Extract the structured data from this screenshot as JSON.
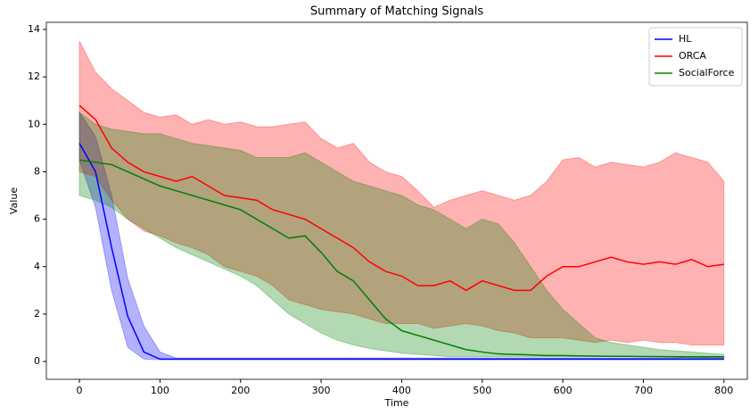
{
  "chart_data": {
    "type": "line",
    "title": "Summary of Matching Signals",
    "xlabel": "Time",
    "ylabel": "Value",
    "x": [
      0,
      20,
      40,
      60,
      80,
      100,
      120,
      140,
      160,
      180,
      200,
      220,
      240,
      260,
      280,
      300,
      320,
      340,
      360,
      380,
      400,
      420,
      440,
      460,
      480,
      500,
      520,
      540,
      560,
      580,
      600,
      620,
      640,
      660,
      680,
      700,
      720,
      740,
      760,
      780,
      800
    ],
    "series": [
      {
        "name": "HL",
        "color": "#0000ff",
        "values": [
          9.2,
          8.0,
          4.8,
          1.9,
          0.4,
          0.1,
          0.1,
          0.1,
          0.1,
          0.1,
          0.1,
          0.1,
          0.1,
          0.1,
          0.1,
          0.1,
          0.1,
          0.1,
          0.1,
          0.1,
          0.1,
          0.1,
          0.1,
          0.1,
          0.1,
          0.1,
          0.1,
          0.1,
          0.1,
          0.1,
          0.1,
          0.1,
          0.1,
          0.1,
          0.1,
          0.1,
          0.1,
          0.1,
          0.1,
          0.1,
          0.1
        ],
        "upper": [
          10.5,
          9.5,
          7.0,
          3.5,
          1.5,
          0.4,
          0.15,
          0.15,
          0.15,
          0.15,
          0.15,
          0.15,
          0.15,
          0.15,
          0.15,
          0.15,
          0.15,
          0.15,
          0.15,
          0.15,
          0.15,
          0.15,
          0.15,
          0.15,
          0.15,
          0.15,
          0.15,
          0.15,
          0.15,
          0.15,
          0.15,
          0.15,
          0.15,
          0.15,
          0.15,
          0.15,
          0.15,
          0.15,
          0.2,
          0.2,
          0.2
        ],
        "lower": [
          8.5,
          6.5,
          3.0,
          0.6,
          0.1,
          0.08,
          0.08,
          0.08,
          0.08,
          0.08,
          0.08,
          0.08,
          0.08,
          0.08,
          0.08,
          0.08,
          0.08,
          0.08,
          0.08,
          0.08,
          0.08,
          0.08,
          0.08,
          0.08,
          0.08,
          0.08,
          0.08,
          0.08,
          0.08,
          0.08,
          0.08,
          0.08,
          0.08,
          0.08,
          0.08,
          0.08,
          0.08,
          0.08,
          0.08,
          0.08,
          0.08
        ]
      },
      {
        "name": "ORCA",
        "color": "#ff0000",
        "values": [
          10.8,
          10.2,
          9.0,
          8.4,
          8.0,
          7.8,
          7.6,
          7.8,
          7.4,
          7.0,
          6.9,
          6.8,
          6.4,
          6.2,
          6.0,
          5.6,
          5.2,
          4.8,
          4.2,
          3.8,
          3.6,
          3.2,
          3.2,
          3.4,
          3.0,
          3.4,
          3.2,
          3.0,
          3.0,
          3.6,
          4.0,
          4.0,
          4.2,
          4.4,
          4.2,
          4.1,
          4.2,
          4.1,
          4.3,
          4.0,
          4.1
        ],
        "upper": [
          13.5,
          12.2,
          11.5,
          11.0,
          10.5,
          10.3,
          10.4,
          10.0,
          10.2,
          10.0,
          10.1,
          9.9,
          9.9,
          10.0,
          10.1,
          9.4,
          9.0,
          9.2,
          8.4,
          8.0,
          7.8,
          7.2,
          6.5,
          6.8,
          7.0,
          7.2,
          7.0,
          6.8,
          7.0,
          7.6,
          8.5,
          8.6,
          8.2,
          8.4,
          8.3,
          8.2,
          8.4,
          8.8,
          8.6,
          8.4,
          7.6
        ],
        "lower": [
          8.0,
          7.8,
          6.8,
          6.0,
          5.5,
          5.3,
          5.0,
          4.8,
          4.5,
          4.0,
          3.8,
          3.6,
          3.2,
          2.6,
          2.4,
          2.2,
          2.1,
          2.0,
          1.8,
          1.6,
          1.6,
          1.6,
          1.4,
          1.5,
          1.6,
          1.5,
          1.3,
          1.2,
          1.0,
          1.0,
          1.0,
          0.9,
          0.8,
          0.9,
          0.8,
          0.9,
          0.8,
          0.8,
          0.7,
          0.7,
          0.7
        ]
      },
      {
        "name": "SocialForce",
        "color": "#008000",
        "values": [
          8.5,
          8.4,
          8.3,
          8.0,
          7.7,
          7.4,
          7.2,
          7.0,
          6.8,
          6.6,
          6.4,
          6.0,
          5.6,
          5.2,
          5.3,
          4.6,
          3.8,
          3.4,
          2.6,
          1.8,
          1.3,
          1.1,
          0.9,
          0.7,
          0.5,
          0.4,
          0.32,
          0.3,
          0.28,
          0.25,
          0.25,
          0.24,
          0.23,
          0.22,
          0.22,
          0.21,
          0.21,
          0.2,
          0.2,
          0.2,
          0.2
        ],
        "upper": [
          10.5,
          10.0,
          9.8,
          9.7,
          9.6,
          9.6,
          9.4,
          9.2,
          9.1,
          9.0,
          8.9,
          8.6,
          8.6,
          8.6,
          8.8,
          8.4,
          8.0,
          7.6,
          7.4,
          7.2,
          7.0,
          6.6,
          6.4,
          6.0,
          5.6,
          6.0,
          5.8,
          5.0,
          4.0,
          3.0,
          2.2,
          1.6,
          1.0,
          0.8,
          0.7,
          0.6,
          0.5,
          0.45,
          0.4,
          0.35,
          0.3
        ],
        "lower": [
          7.0,
          6.8,
          6.5,
          6.0,
          5.6,
          5.2,
          4.8,
          4.5,
          4.2,
          3.9,
          3.6,
          3.2,
          2.6,
          2.0,
          1.6,
          1.2,
          0.9,
          0.7,
          0.55,
          0.45,
          0.35,
          0.3,
          0.25,
          0.2,
          0.2,
          0.2,
          0.2,
          0.2,
          0.2,
          0.2,
          0.2,
          0.2,
          0.2,
          0.2,
          0.2,
          0.2,
          0.18,
          0.18,
          0.16,
          0.15,
          0.15
        ]
      }
    ],
    "xlim": [
      -41,
      829
    ],
    "ylim": [
      -0.75,
      14.3
    ],
    "xticks": [
      0,
      100,
      200,
      300,
      400,
      500,
      600,
      700,
      800
    ],
    "yticks": [
      0,
      2,
      4,
      6,
      8,
      10,
      12,
      14
    ],
    "legend": "upper right"
  }
}
